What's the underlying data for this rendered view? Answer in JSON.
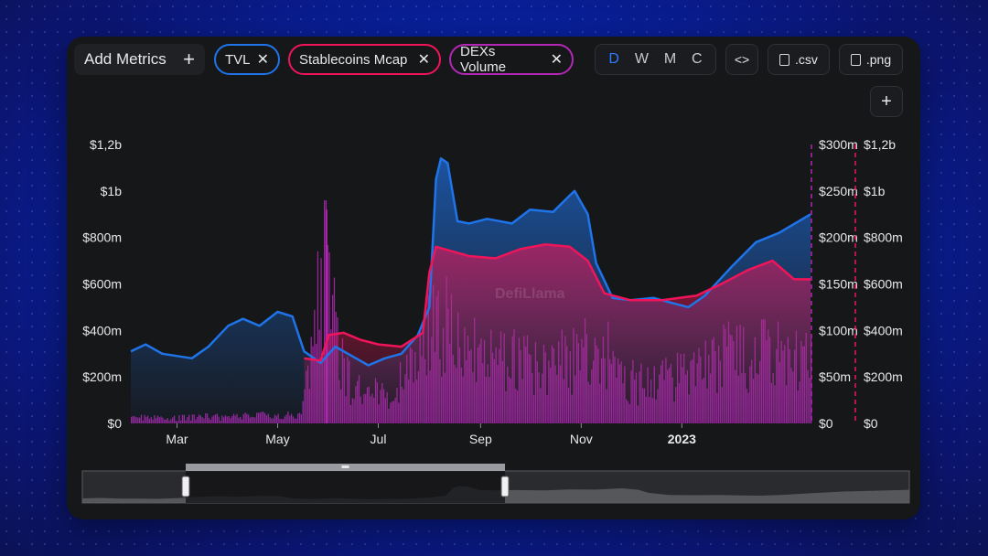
{
  "toolbar": {
    "add_metrics_label": "Add Metrics",
    "plus_glyph": "+",
    "close_glyph": "✕",
    "metrics": [
      {
        "label": "TVL",
        "color": "#1f74ea"
      },
      {
        "label": "Stablecoins Mcap",
        "color": "#f0155a"
      },
      {
        "label": "DEXs Volume",
        "color": "#b227b4"
      }
    ],
    "granularity": [
      "D",
      "W",
      "M",
      "C"
    ],
    "granularity_selected": "D",
    "embed_glyph": "<>",
    "csv_label": ".csv",
    "png_label": ".png",
    "add_chart_glyph": "+"
  },
  "watermark": "DefiLlama",
  "chart_data": {
    "type": "area",
    "x_ticks": [
      "Mar",
      "May",
      "Jul",
      "Sep",
      "Nov",
      "2023"
    ],
    "y_left_ticks": [
      "$0",
      "$200m",
      "$400m",
      "$600m",
      "$800m",
      "$1b",
      "$1,2b"
    ],
    "y_right1_ticks": [
      "$0",
      "$50m",
      "$100m",
      "$150m",
      "$200m",
      "$250m",
      "$300m"
    ],
    "y_right2_ticks": [
      "$0",
      "$200m",
      "$400m",
      "$600m",
      "$800m",
      "$1b",
      "$1,2b"
    ],
    "ylim_left": [
      0,
      1200000000
    ],
    "ylim_right1": [
      0,
      300000000
    ],
    "ylim_right2": [
      0,
      1200000000
    ],
    "x_start": "2022-02-01",
    "x_end": "2023-03-20",
    "series": [
      {
        "name": "TVL",
        "axis": "left",
        "color": "#1f74ea",
        "points": [
          [
            "2022-02-01",
            310000000
          ],
          [
            "2022-02-10",
            340000000
          ],
          [
            "2022-02-20",
            300000000
          ],
          [
            "2022-03-01",
            290000000
          ],
          [
            "2022-03-10",
            280000000
          ],
          [
            "2022-03-20",
            330000000
          ],
          [
            "2022-04-01",
            420000000
          ],
          [
            "2022-04-10",
            450000000
          ],
          [
            "2022-04-20",
            420000000
          ],
          [
            "2022-05-01",
            480000000
          ],
          [
            "2022-05-10",
            460000000
          ],
          [
            "2022-05-17",
            310000000
          ],
          [
            "2022-05-27",
            260000000
          ],
          [
            "2022-06-05",
            330000000
          ],
          [
            "2022-06-15",
            290000000
          ],
          [
            "2022-06-25",
            250000000
          ],
          [
            "2022-07-05",
            280000000
          ],
          [
            "2022-07-15",
            300000000
          ],
          [
            "2022-07-25",
            380000000
          ],
          [
            "2022-08-01",
            500000000
          ],
          [
            "2022-08-05",
            1050000000
          ],
          [
            "2022-08-08",
            1140000000
          ],
          [
            "2022-08-12",
            1120000000
          ],
          [
            "2022-08-18",
            870000000
          ],
          [
            "2022-08-25",
            860000000
          ],
          [
            "2022-09-05",
            880000000
          ],
          [
            "2022-09-20",
            860000000
          ],
          [
            "2022-10-01",
            920000000
          ],
          [
            "2022-10-15",
            910000000
          ],
          [
            "2022-10-25",
            980000000
          ],
          [
            "2022-10-28",
            1000000000
          ],
          [
            "2022-11-05",
            900000000
          ],
          [
            "2022-11-10",
            690000000
          ],
          [
            "2022-11-20",
            540000000
          ],
          [
            "2022-12-01",
            530000000
          ],
          [
            "2022-12-15",
            540000000
          ],
          [
            "2022-12-25",
            520000000
          ],
          [
            "2023-01-05",
            500000000
          ],
          [
            "2023-01-15",
            550000000
          ],
          [
            "2023-02-01",
            680000000
          ],
          [
            "2023-02-15",
            780000000
          ],
          [
            "2023-03-01",
            820000000
          ],
          [
            "2023-03-20",
            900000000
          ]
        ]
      },
      {
        "name": "Stablecoins Mcap",
        "axis": "right2",
        "color": "#f0155a",
        "points": [
          [
            "2022-05-17",
            280000000
          ],
          [
            "2022-05-27",
            270000000
          ],
          [
            "2022-06-01",
            380000000
          ],
          [
            "2022-06-10",
            390000000
          ],
          [
            "2022-06-20",
            360000000
          ],
          [
            "2022-07-01",
            340000000
          ],
          [
            "2022-07-15",
            330000000
          ],
          [
            "2022-07-28",
            390000000
          ],
          [
            "2022-08-01",
            650000000
          ],
          [
            "2022-08-05",
            760000000
          ],
          [
            "2022-08-15",
            740000000
          ],
          [
            "2022-08-25",
            720000000
          ],
          [
            "2022-09-10",
            710000000
          ],
          [
            "2022-09-25",
            750000000
          ],
          [
            "2022-10-10",
            770000000
          ],
          [
            "2022-10-25",
            760000000
          ],
          [
            "2022-11-05",
            700000000
          ],
          [
            "2022-11-15",
            560000000
          ],
          [
            "2022-12-01",
            530000000
          ],
          [
            "2022-12-20",
            530000000
          ],
          [
            "2023-01-10",
            550000000
          ],
          [
            "2023-01-25",
            600000000
          ],
          [
            "2023-02-10",
            660000000
          ],
          [
            "2023-02-25",
            700000000
          ],
          [
            "2023-03-10",
            620000000
          ],
          [
            "2023-03-20",
            620000000
          ]
        ]
      },
      {
        "name": "DEXs Volume",
        "axis": "right1",
        "color": "#b227b4",
        "chart": "bar",
        "values_note_free": true,
        "points": [
          [
            "2022-02-01",
            8000000
          ],
          [
            "2022-02-15",
            9000000
          ],
          [
            "2022-03-01",
            7000000
          ],
          [
            "2022-03-15",
            9000000
          ],
          [
            "2022-04-01",
            8000000
          ],
          [
            "2022-04-15",
            10000000
          ],
          [
            "2022-05-01",
            12000000
          ],
          [
            "2022-05-15",
            9000000
          ],
          [
            "2022-05-30",
            230000000
          ],
          [
            "2022-06-10",
            60000000
          ],
          [
            "2022-06-25",
            40000000
          ],
          [
            "2022-07-10",
            40000000
          ],
          [
            "2022-07-25",
            90000000
          ],
          [
            "2022-08-05",
            140000000
          ],
          [
            "2022-08-20",
            110000000
          ],
          [
            "2022-09-05",
            100000000
          ],
          [
            "2022-09-25",
            80000000
          ],
          [
            "2022-10-10",
            70000000
          ],
          [
            "2022-10-28",
            90000000
          ],
          [
            "2022-11-10",
            120000000
          ],
          [
            "2022-11-25",
            60000000
          ],
          [
            "2022-12-10",
            50000000
          ],
          [
            "2022-12-28",
            60000000
          ],
          [
            "2023-01-15",
            80000000
          ],
          [
            "2023-02-01",
            90000000
          ],
          [
            "2023-02-20",
            95000000
          ],
          [
            "2023-03-10",
            85000000
          ]
        ]
      }
    ],
    "range_selector": {
      "start": "2022-02-01",
      "end": "2022-06-15"
    }
  }
}
